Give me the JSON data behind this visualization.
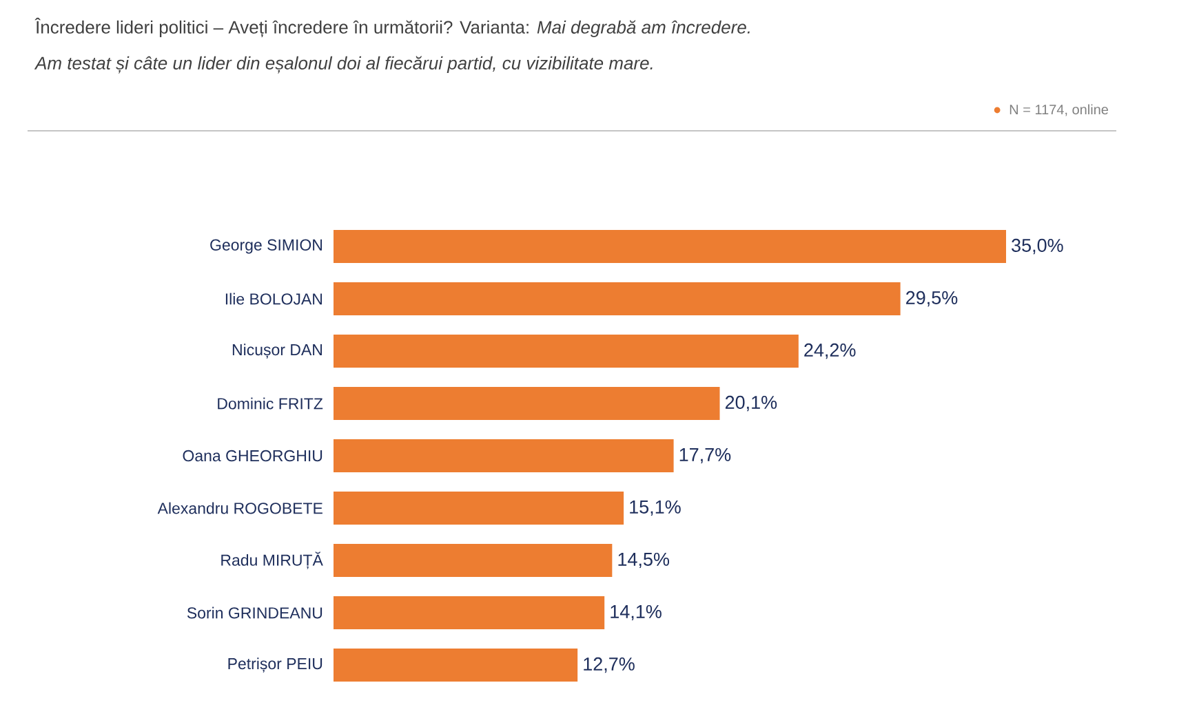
{
  "chart_data": {
    "type": "bar",
    "orientation": "horizontal",
    "title": "Încredere lideri politici – Aveți încredere în următorii? Varianta: *Mai degrabă am încredere.*",
    "subtitle": "Am testat și câte un lider din eșalonul doi al fiecărui partid, cu vizibilitate mare.",
    "annotations": [
      "N = 1174, online"
    ],
    "categories": [
      "George SIMION",
      "Ilie BOLOJAN",
      "Nicușor DAN",
      "Dominic FRITZ",
      "Oana GHEORGHIU",
      "Alexandru ROGOBETE",
      "Radu MIRUȚĂ",
      "Sorin GRINDEANU",
      "Petrișor PEIU"
    ],
    "values": [
      35.0,
      29.5,
      24.2,
      20.1,
      17.7,
      15.1,
      14.5,
      14.1,
      12.7
    ],
    "value_labels": [
      "35,0%",
      "29,5%",
      "24,2%",
      "20,1%",
      "17,7%",
      "15,1%",
      "14,5%",
      "14,1%",
      "12,7%"
    ],
    "color": "#ed7d31"
  }
}
